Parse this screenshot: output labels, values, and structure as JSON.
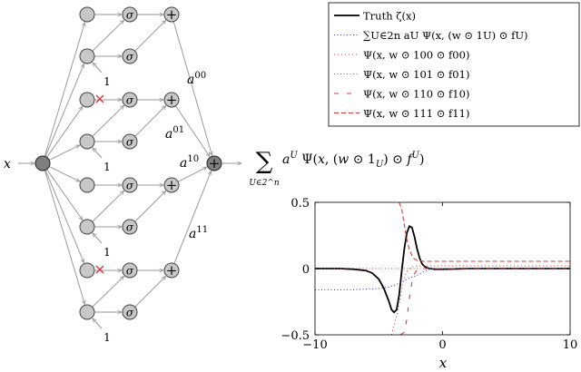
{
  "diagram": {
    "input_label": "x",
    "sigma_symbol": "σ",
    "plus_symbol": "+",
    "one_label": "1",
    "branch_labels": [
      "a00",
      "a01",
      "a10",
      "a11"
    ],
    "output_expression": "∑ a^U Ψ(x, (w ⊙ 1_U) ⊙ f^U)",
    "sum_index": "U∈2^n",
    "cross_color": "#e0303a"
  },
  "legend": {
    "entries": [
      {
        "label": "Truth ζ(x)",
        "style": "solid",
        "color": "#000000"
      },
      {
        "label": "∑U∈2n aU Ψ(x, (w ⊙ 1U) ⊙ fU)",
        "style": "dotted",
        "color": "#3a3acc"
      },
      {
        "label": "Ψ(x, w ⊙ 100 ⊙ f00)",
        "style": "dashdot",
        "color": "#d23c3c"
      },
      {
        "label": "Ψ(x, w ⊙ 101 ⊙ f01)",
        "style": "dotted",
        "color": "#d23c3c"
      },
      {
        "label": "Ψ(x, w ⊙ 110 ⊙ f10)",
        "style": "loosedash",
        "color": "#d23c3c"
      },
      {
        "label": "Ψ(x, w ⊙ 111 ⊙ f11)",
        "style": "dashed",
        "color": "#d23c3c"
      }
    ]
  },
  "chart_data": {
    "type": "line",
    "xlabel": "x",
    "xlim": [
      -10,
      10
    ],
    "ylim": [
      -0.5,
      0.5
    ],
    "xticks": [
      -10,
      0,
      10
    ],
    "yticks": [
      -0.5,
      0,
      0.5
    ],
    "series": [
      {
        "style": "solid",
        "color": "#000000",
        "x": [
          -10,
          -8,
          -7,
          -6,
          -5.5,
          -5,
          -4.6,
          -4.2,
          -4,
          -3.8,
          -3.6,
          -3.4,
          -3.2,
          -3.0,
          -2.8,
          -2.6,
          -2.4,
          -2.2,
          -2.0,
          -1.8,
          -1.6,
          -1.4,
          -1.2,
          -1.0,
          -0.6,
          0,
          2,
          5,
          10
        ],
        "y": [
          0,
          0,
          -0.005,
          -0.015,
          -0.035,
          -0.08,
          -0.15,
          -0.25,
          -0.31,
          -0.33,
          -0.31,
          -0.2,
          -0.02,
          0.15,
          0.27,
          0.32,
          0.31,
          0.24,
          0.15,
          0.08,
          0.035,
          0.015,
          0.005,
          0.0,
          -0.005,
          -0.005,
          0,
          0,
          0
        ]
      },
      {
        "style": "dotted",
        "color": "#3a3acc",
        "x": [
          -10,
          -7,
          -5,
          -4.2,
          -3.6,
          -3.0,
          -2.6,
          -2.2,
          -1.8,
          -1.4,
          -1.0,
          -0.5,
          0,
          2,
          10
        ],
        "y": [
          -0.16,
          -0.16,
          -0.15,
          -0.14,
          -0.12,
          -0.09,
          -0.07,
          -0.06,
          -0.04,
          -0.02,
          -0.005,
          0,
          0,
          0,
          0
        ]
      },
      {
        "style": "dashdot",
        "color": "#d23c3c",
        "x": [
          -4.0,
          -3.5,
          -3.2,
          -3.0,
          -2.8,
          -2.6,
          -2.3,
          -2.0,
          -1.6,
          -1.0,
          0,
          10
        ],
        "y": [
          -0.5,
          -0.32,
          -0.16,
          -0.07,
          -0.02,
          0.0,
          0.015,
          0.02,
          0.02,
          0.02,
          0.02,
          0.02
        ]
      },
      {
        "style": "dotted",
        "color": "#d23c3c",
        "x": [
          -10,
          10
        ],
        "y": [
          0,
          0
        ]
      },
      {
        "style": "loosedash",
        "color": "#d23c3c",
        "x": [
          -3.3,
          -3.0,
          -2.8,
          -2.6,
          -2.4,
          -2.2,
          -2.0,
          -1.8,
          -1.5,
          -1.0,
          0,
          10
        ],
        "y": [
          -0.5,
          -0.48,
          -0.38,
          -0.22,
          -0.1,
          -0.04,
          -0.01,
          0.0,
          0.0,
          0.0,
          0.0,
          0.0
        ]
      },
      {
        "style": "dashed",
        "color": "#d23c3c",
        "x": [
          -3.4,
          -3.2,
          -3.0,
          -2.8,
          -2.6,
          -2.3,
          -2.0,
          -1.5,
          -1.0,
          0,
          10
        ],
        "y": [
          0.5,
          0.45,
          0.33,
          0.22,
          0.14,
          0.08,
          0.06,
          0.055,
          0.055,
          0.055,
          0.055
        ]
      }
    ]
  }
}
